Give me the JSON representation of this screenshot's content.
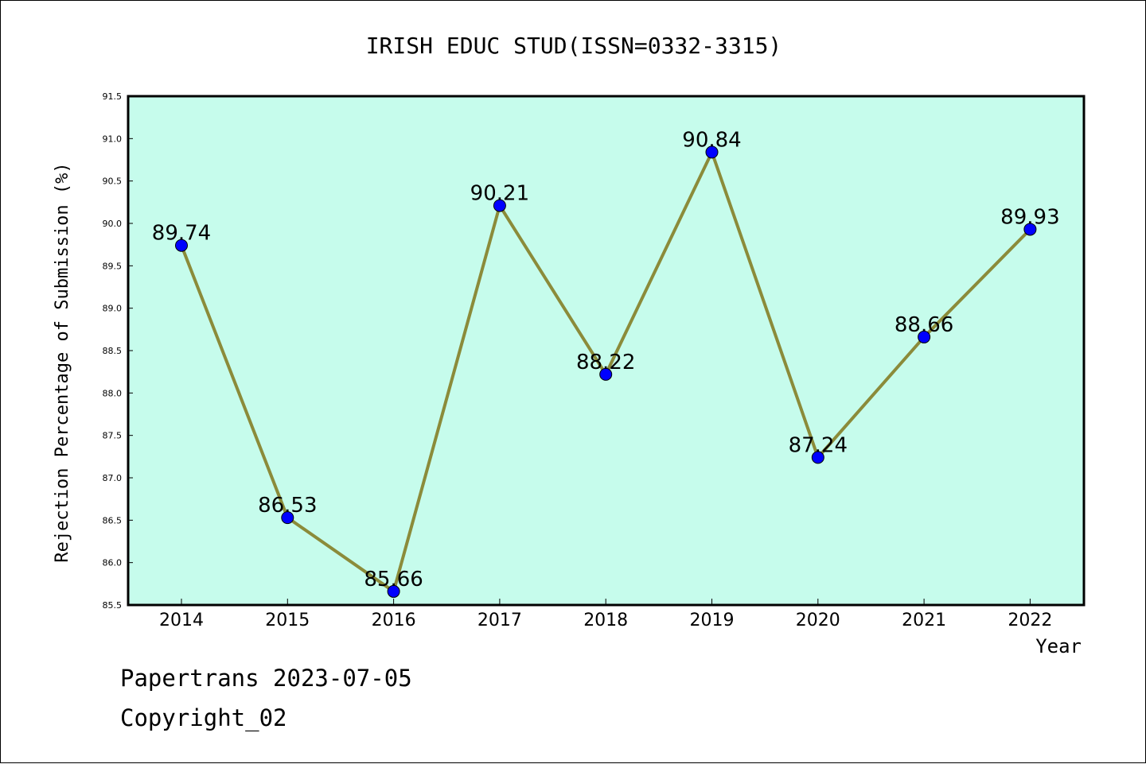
{
  "chart_data": {
    "type": "line",
    "title": "IRISH EDUC STUD(ISSN=0332-3315)",
    "xlabel": "Year",
    "ylabel": "Rejection Percentage of Submission (%)",
    "categories": [
      "2014",
      "2015",
      "2016",
      "2017",
      "2018",
      "2019",
      "2020",
      "2021",
      "2022"
    ],
    "values": [
      89.74,
      86.53,
      85.66,
      90.21,
      88.22,
      90.84,
      87.24,
      88.66,
      89.93
    ],
    "data_labels": [
      "89.74",
      "86.53",
      "85.66",
      "90.21",
      "88.22",
      "90.84",
      "87.24",
      "88.66",
      "89.93"
    ],
    "ylim": [
      85.5,
      91.5
    ],
    "yticks": [
      "85.5",
      "86.0",
      "86.5",
      "87.0",
      "87.5",
      "88.0",
      "88.5",
      "89.0",
      "89.5",
      "90.0",
      "90.5",
      "91.0",
      "91.5"
    ],
    "grid": false,
    "legend": "none",
    "colors": {
      "plot_background": "#c6fcec",
      "line": "#8b8b3a",
      "marker": "#0000ff"
    }
  },
  "footer": {
    "date_text": "Papertrans 2023-07-05",
    "copyright_text": "Copyright_02"
  }
}
